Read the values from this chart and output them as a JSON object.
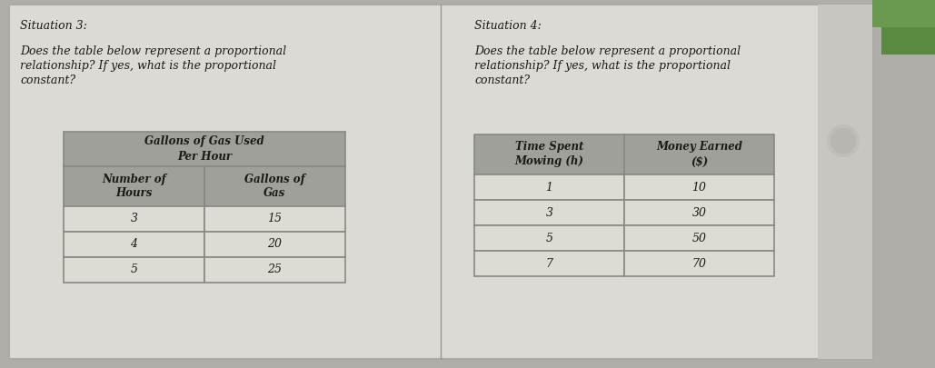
{
  "fig_bg": "#b0aea8",
  "paper_bg": "#d8d6d0",
  "white_panel": "#e2e0da",
  "table_header_bg": "#a0a09a",
  "table_row_bg": "#dddbd4",
  "table_row_bg2": "#cac8c2",
  "border_color": "#888884",
  "text_color": "#1a1a1a",
  "right_bg": "#c8c6c0",
  "situation3": {
    "title": "Situation 3:",
    "question_lines": [
      "Does the table below represent a proportional",
      "relationship? If yes, what is the proportional",
      "constant?"
    ],
    "table_title": "Gallons of Gas Used\nPer Hour",
    "col1_header": "Number of\nHours",
    "col2_header": "Gallons of\nGas",
    "rows": [
      [
        "3",
        "15"
      ],
      [
        "4",
        "20"
      ],
      [
        "5",
        "25"
      ]
    ]
  },
  "situation4": {
    "title": "Situation 4:",
    "question_lines": [
      "Does the table below represent a proportional",
      "relationship? If yes, what is the proportional",
      "constant?"
    ],
    "col1_header": "Time Spent\nMowing (h)",
    "col2_header": "Money Earned\n($)",
    "rows": [
      [
        "1",
        "10"
      ],
      [
        "3",
        "30"
      ],
      [
        "5",
        "50"
      ],
      [
        "7",
        "70"
      ]
    ]
  }
}
